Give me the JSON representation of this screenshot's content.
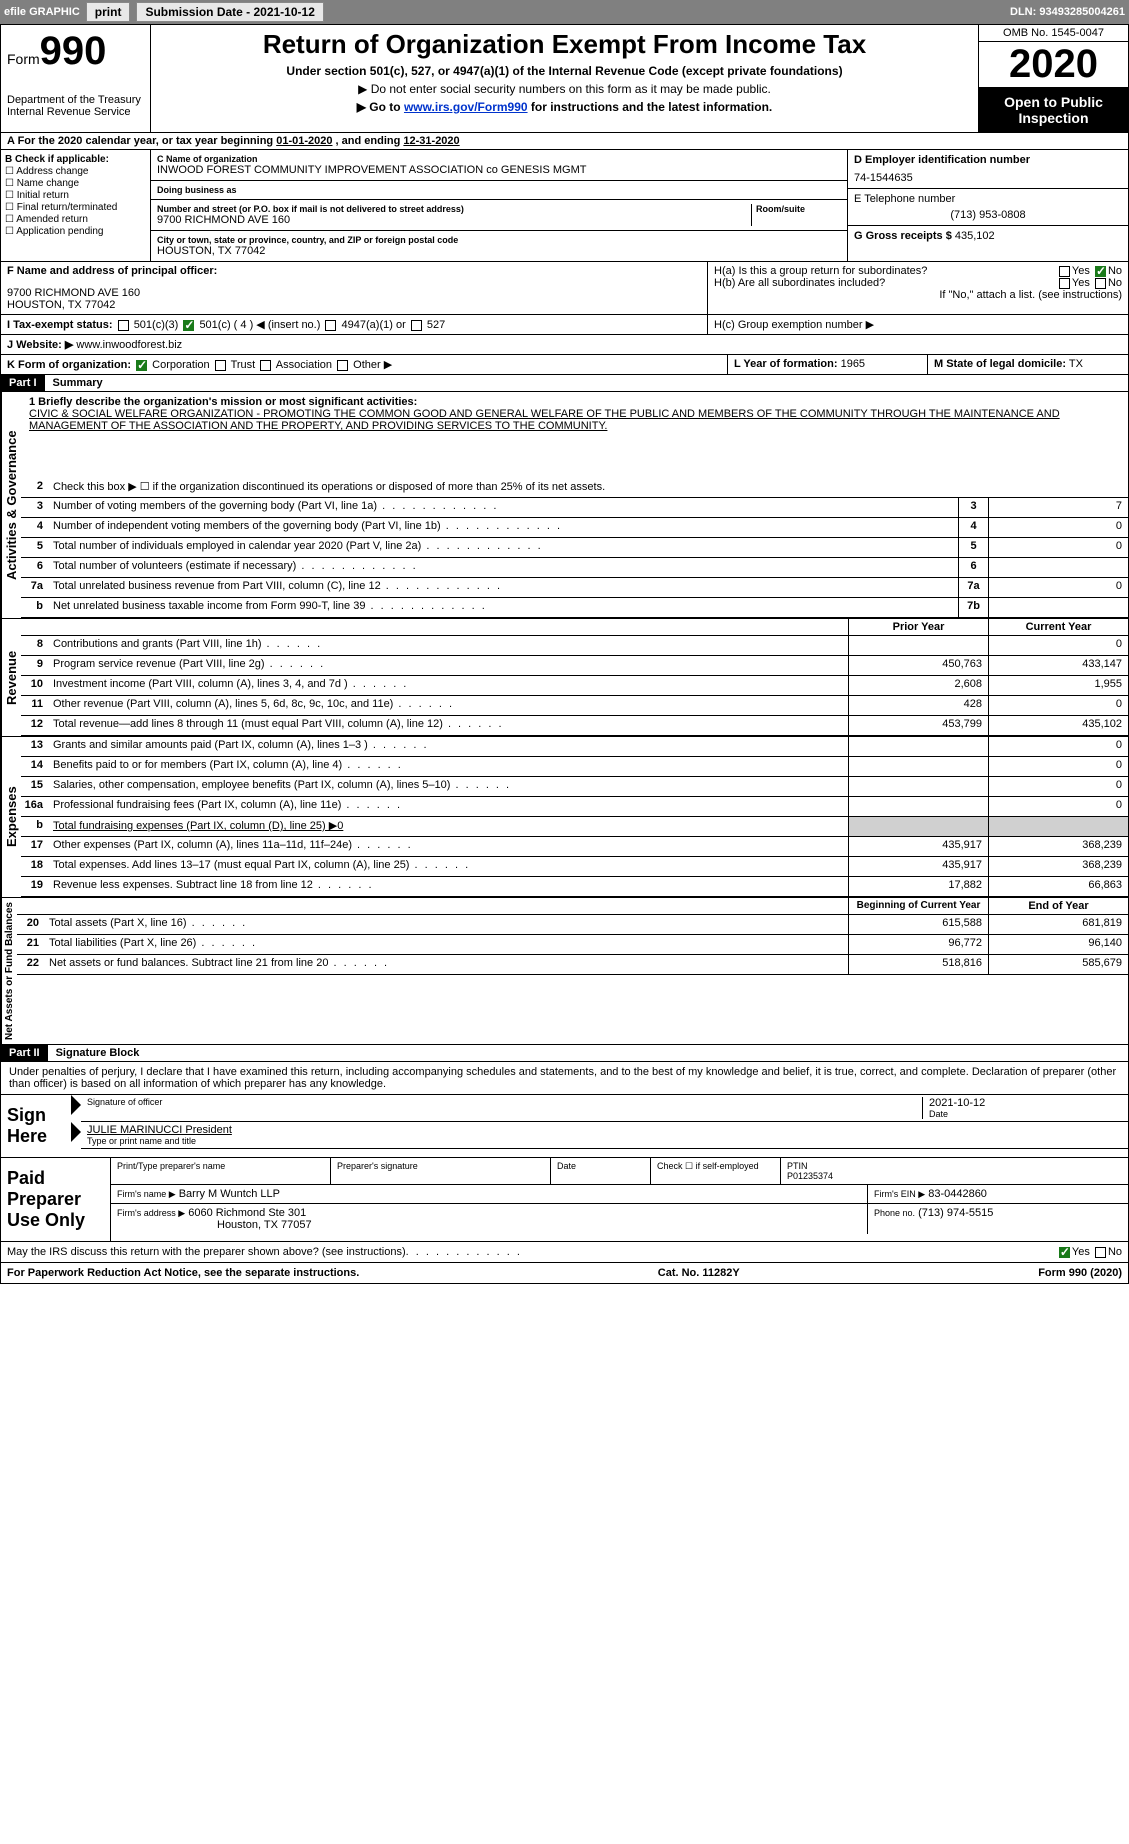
{
  "topbar": {
    "efile_label": "efile GRAPHIC",
    "print_label": "print",
    "submission_label": "Submission Date - 2021-10-12",
    "dln": "DLN: 93493285004261"
  },
  "header": {
    "form_label": "Form",
    "form_number": "990",
    "dept": "Department of the Treasury",
    "irs": "Internal Revenue Service",
    "title": "Return of Organization Exempt From Income Tax",
    "subtitle": "Under section 501(c), 527, or 4947(a)(1) of the Internal Revenue Code (except private foundations)",
    "ssn_warning": "▶ Do not enter social security numbers on this form as it may be made public.",
    "goto_prefix": "▶ Go to ",
    "goto_link": "www.irs.gov/Form990",
    "goto_suffix": " for instructions and the latest information.",
    "omb": "OMB No. 1545-0047",
    "year": "2020",
    "open_public": "Open to Public Inspection"
  },
  "period": {
    "prefix": "A For the 2020 calendar year, or tax year beginning ",
    "begin": "01-01-2020",
    "mid": "   , and ending ",
    "end": "12-31-2020"
  },
  "section_b": {
    "label": "B Check if applicable:",
    "opts": [
      "Address change",
      "Name change",
      "Initial return",
      "Final return/terminated",
      "Amended return",
      "Application pending"
    ]
  },
  "section_c": {
    "name_label": "C Name of organization",
    "org_name": "INWOOD FOREST COMMUNITY IMPROVEMENT ASSOCIATION co GENESIS MGMT",
    "dba_label": "Doing business as",
    "addr_label": "Number and street (or P.O. box if mail is not delivered to street address)",
    "room_label": "Room/suite",
    "street": "9700 RICHMOND AVE 160",
    "city_label": "City or town, state or province, country, and ZIP or foreign postal code",
    "city": "HOUSTON, TX  77042"
  },
  "section_d": {
    "ein_label": "D Employer identification number",
    "ein": "74-1544635",
    "phone_label": "E Telephone number",
    "phone": "(713) 953-0808",
    "gross_label": "G Gross receipts $",
    "gross": "435,102"
  },
  "section_f": {
    "label": "F Name and address of principal officer:",
    "addr1": "9700 RICHMOND AVE 160",
    "addr2": "HOUSTON, TX  77042"
  },
  "section_h": {
    "ha": "H(a)  Is this a group return for subordinates?",
    "hb": "H(b)  Are all subordinates included?",
    "hb_note": "If \"No,\" attach a list. (see instructions)",
    "hc": "H(c)  Group exemption number ▶",
    "yes": "Yes",
    "no": "No"
  },
  "tax_status": {
    "label": "I  Tax-exempt status:",
    "opt1": "501(c)(3)",
    "opt2_pre": "501(c) ( ",
    "opt2_num": "4",
    "opt2_post": " ) ◀ (insert no.)",
    "opt3": "4947(a)(1) or",
    "opt4": "527"
  },
  "website": {
    "label": "J  Website: ▶",
    "value": "www.inwoodforest.biz"
  },
  "section_k": {
    "label": "K Form of organization:",
    "opts": [
      "Corporation",
      "Trust",
      "Association",
      "Other ▶"
    ]
  },
  "section_l": {
    "label": "L Year of formation:",
    "value": "1965"
  },
  "section_m": {
    "label": "M State of legal domicile:",
    "value": "TX"
  },
  "part1": {
    "hdr": "Part I",
    "title": "Summary",
    "line1_label": "1  Briefly describe the organization's mission or most significant activities:",
    "mission": "CIVIC & SOCIAL WELFARE ORGANIZATION - PROMOTING THE COMMON GOOD AND GENERAL WELFARE OF THE PUBLIC AND MEMBERS OF THE COMMUNITY THROUGH THE MAINTENANCE AND MANAGEMENT OF THE ASSOCIATION AND THE PROPERTY, AND PROVIDING SERVICES TO THE COMMUNITY."
  },
  "governance": {
    "vlabel": "Activities & Governance",
    "lines": [
      {
        "n": "2",
        "d": "Check this box ▶ ☐ if the organization discontinued its operations or disposed of more than 25% of its net assets."
      },
      {
        "n": "3",
        "d": "Number of voting members of the governing body (Part VI, line 1a)",
        "box": "3",
        "v": "7"
      },
      {
        "n": "4",
        "d": "Number of independent voting members of the governing body (Part VI, line 1b)",
        "box": "4",
        "v": "0"
      },
      {
        "n": "5",
        "d": "Total number of individuals employed in calendar year 2020 (Part V, line 2a)",
        "box": "5",
        "v": "0"
      },
      {
        "n": "6",
        "d": "Total number of volunteers (estimate if necessary)",
        "box": "6",
        "v": ""
      },
      {
        "n": "7a",
        "d": "Total unrelated business revenue from Part VIII, column (C), line 12",
        "box": "7a",
        "v": "0"
      },
      {
        "n": "b",
        "d": "Net unrelated business taxable income from Form 990-T, line 39",
        "box": "7b",
        "v": ""
      }
    ]
  },
  "revenue": {
    "vlabel": "Revenue",
    "prior_hdr": "Prior Year",
    "current_hdr": "Current Year",
    "lines": [
      {
        "n": "8",
        "d": "Contributions and grants (Part VIII, line 1h)",
        "p": "",
        "c": "0"
      },
      {
        "n": "9",
        "d": "Program service revenue (Part VIII, line 2g)",
        "p": "450,763",
        "c": "433,147"
      },
      {
        "n": "10",
        "d": "Investment income (Part VIII, column (A), lines 3, 4, and 7d )",
        "p": "2,608",
        "c": "1,955"
      },
      {
        "n": "11",
        "d": "Other revenue (Part VIII, column (A), lines 5, 6d, 8c, 9c, 10c, and 11e)",
        "p": "428",
        "c": "0"
      },
      {
        "n": "12",
        "d": "Total revenue—add lines 8 through 11 (must equal Part VIII, column (A), line 12)",
        "p": "453,799",
        "c": "435,102"
      }
    ]
  },
  "expenses": {
    "vlabel": "Expenses",
    "lines": [
      {
        "n": "13",
        "d": "Grants and similar amounts paid (Part IX, column (A), lines 1–3 )",
        "p": "",
        "c": "0"
      },
      {
        "n": "14",
        "d": "Benefits paid to or for members (Part IX, column (A), line 4)",
        "p": "",
        "c": "0"
      },
      {
        "n": "15",
        "d": "Salaries, other compensation, employee benefits (Part IX, column (A), lines 5–10)",
        "p": "",
        "c": "0"
      },
      {
        "n": "16a",
        "d": "Professional fundraising fees (Part IX, column (A), line 11e)",
        "p": "",
        "c": "0"
      },
      {
        "n": "b",
        "d": "Total fundraising expenses (Part IX, column (D), line 25) ▶0",
        "nb": true
      },
      {
        "n": "17",
        "d": "Other expenses (Part IX, column (A), lines 11a–11d, 11f–24e)",
        "p": "435,917",
        "c": "368,239"
      },
      {
        "n": "18",
        "d": "Total expenses. Add lines 13–17 (must equal Part IX, column (A), line 25)",
        "p": "435,917",
        "c": "368,239"
      },
      {
        "n": "19",
        "d": "Revenue less expenses. Subtract line 18 from line 12",
        "p": "17,882",
        "c": "66,863"
      }
    ]
  },
  "netassets": {
    "vlabel": "Net Assets or Fund Balances",
    "begin_hdr": "Beginning of Current Year",
    "end_hdr": "End of Year",
    "lines": [
      {
        "n": "20",
        "d": "Total assets (Part X, line 16)",
        "p": "615,588",
        "c": "681,819"
      },
      {
        "n": "21",
        "d": "Total liabilities (Part X, line 26)",
        "p": "96,772",
        "c": "96,140"
      },
      {
        "n": "22",
        "d": "Net assets or fund balances. Subtract line 21 from line 20",
        "p": "518,816",
        "c": "585,679"
      }
    ]
  },
  "part2": {
    "hdr": "Part II",
    "title": "Signature Block",
    "perjury": "Under penalties of perjury, I declare that I have examined this return, including accompanying schedules and statements, and to the best of my knowledge and belief, it is true, correct, and complete. Declaration of preparer (other than officer) is based on all information of which preparer has any knowledge."
  },
  "sign": {
    "label": "Sign Here",
    "sig_officer": "Signature of officer",
    "date": "Date",
    "date_val": "2021-10-12",
    "name_title": "JULIE MARINUCCI President",
    "type_label": "Type or print name and title"
  },
  "paid": {
    "label": "Paid Preparer Use Only",
    "print_name": "Print/Type preparer's name",
    "prep_sig": "Preparer's signature",
    "date": "Date",
    "check_label": "Check ☐ if self-employed",
    "ptin_label": "PTIN",
    "ptin": "P01235374",
    "firm_name_label": "Firm's name    ▶",
    "firm_name": "Barry M Wuntch LLP",
    "firm_ein_label": "Firm's EIN ▶",
    "firm_ein": "83-0442860",
    "firm_addr_label": "Firm's address ▶",
    "firm_addr1": "6060 Richmond Ste 301",
    "firm_addr2": "Houston, TX  77057",
    "phone_label": "Phone no.",
    "phone": "(713) 974-5515"
  },
  "discuss": {
    "text": "May the IRS discuss this return with the preparer shown above? (see instructions)",
    "yes": "Yes",
    "no": "No"
  },
  "footer": {
    "paperwork": "For Paperwork Reduction Act Notice, see the separate instructions.",
    "cat": "Cat. No. 11282Y",
    "form": "Form 990 (2020)"
  },
  "colors": {
    "topbar_bg": "#808080",
    "part_bg": "#000000",
    "check_green": "#1a7a1a",
    "link": "#0033cc",
    "grey_cell": "#d0d0d0"
  }
}
